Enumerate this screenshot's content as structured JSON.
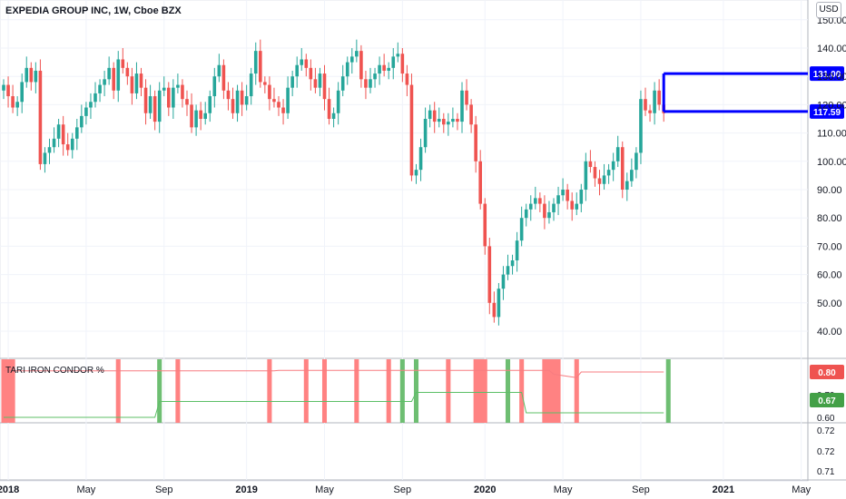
{
  "header": {
    "title": "EXPEDIA GROUP INC, 1W, Cboe BZX",
    "currency": "USD"
  },
  "indicator": {
    "title": "TARI IRON CONDOR %"
  },
  "chart_data": {
    "type": "candlestick",
    "timeframe": "1W",
    "y_ticks": [
      40,
      50,
      60,
      70,
      80,
      90,
      100,
      110,
      120,
      130,
      140,
      150
    ],
    "ylim": [
      30,
      155
    ],
    "x_ticks": [
      {
        "label": "2018",
        "idx": 1
      },
      {
        "label": "May",
        "idx": 18
      },
      {
        "label": "Sep",
        "idx": 35
      },
      {
        "label": "2019",
        "idx": 53
      },
      {
        "label": "May",
        "idx": 70
      },
      {
        "label": "Sep",
        "idx": 87
      },
      {
        "label": "2020",
        "idx": 105
      },
      {
        "label": "May",
        "idx": 122
      },
      {
        "label": "Sep",
        "idx": 139
      },
      {
        "label": "2021",
        "idx": 157
      },
      {
        "label": "May",
        "idx": 174
      }
    ],
    "price_levels": [
      {
        "value": 131.0,
        "label": "131.00",
        "color": "#0000ff"
      },
      {
        "value": 117.59,
        "label": "117.59",
        "color": "#0000ff"
      }
    ],
    "closes": [
      127,
      123,
      119,
      121,
      128,
      133,
      128,
      132,
      99,
      103,
      105,
      108,
      113,
      106,
      104,
      108,
      112,
      116,
      119,
      121,
      124,
      127,
      129,
      133,
      125,
      136,
      133,
      130,
      124,
      131,
      126,
      117,
      123,
      114,
      125,
      126,
      119,
      126,
      127,
      122,
      120,
      112,
      118,
      115,
      117,
      123,
      130,
      134,
      125,
      122,
      117,
      125,
      120,
      123,
      131,
      139,
      128,
      127,
      122,
      121,
      119,
      117,
      126,
      130,
      134,
      136,
      133,
      129,
      126,
      131,
      122,
      115,
      117,
      125,
      130,
      135,
      137,
      139,
      129,
      126,
      129,
      131,
      134,
      132,
      133,
      137,
      138,
      131,
      127,
      95,
      97,
      105,
      115,
      118,
      114,
      115,
      113,
      114,
      115,
      114,
      125,
      120,
      113,
      100,
      85,
      70,
      50,
      45,
      55,
      60,
      63,
      65,
      72,
      80,
      83,
      85,
      87,
      85,
      80,
      82,
      85,
      88,
      90,
      86,
      83,
      85,
      90,
      100,
      98,
      94,
      92,
      95,
      97,
      100,
      105,
      90,
      93,
      97,
      103,
      122,
      118,
      117,
      125,
      120,
      117
    ],
    "signal_bars": [
      {
        "from": 0,
        "to": 2,
        "color": "red"
      },
      {
        "from": 25,
        "to": 25,
        "color": "red"
      },
      {
        "from": 34,
        "to": 34,
        "color": "green"
      },
      {
        "from": 38,
        "to": 38,
        "color": "red"
      },
      {
        "from": 58,
        "to": 58,
        "color": "red"
      },
      {
        "from": 66,
        "to": 66,
        "color": "red"
      },
      {
        "from": 70,
        "to": 70,
        "color": "red"
      },
      {
        "from": 77,
        "to": 77,
        "color": "red"
      },
      {
        "from": 84,
        "to": 84,
        "color": "red"
      },
      {
        "from": 87,
        "to": 87,
        "color": "green"
      },
      {
        "from": 90,
        "to": 90,
        "color": "green"
      },
      {
        "from": 97,
        "to": 97,
        "color": "red"
      },
      {
        "from": 103,
        "to": 105,
        "color": "red"
      },
      {
        "from": 110,
        "to": 110,
        "color": "green"
      },
      {
        "from": 113,
        "to": 113,
        "color": "red"
      },
      {
        "from": 118,
        "to": 121,
        "color": "red"
      },
      {
        "from": 125,
        "to": 125,
        "color": "red"
      },
      {
        "from": 145,
        "to": 145,
        "color": "green"
      }
    ],
    "indicator": {
      "ticks": [
        0.6,
        0.7
      ],
      "lower_ticks": [
        0.71,
        0.72
      ],
      "upper_value": 0.8,
      "upper_label": "0.80",
      "lower_value": 0.67,
      "lower_label": "0.67",
      "upper_color": "#f77c80",
      "lower_color": "#5cbf66"
    },
    "up_color": "#26a69a",
    "down_color": "#ef5350"
  }
}
